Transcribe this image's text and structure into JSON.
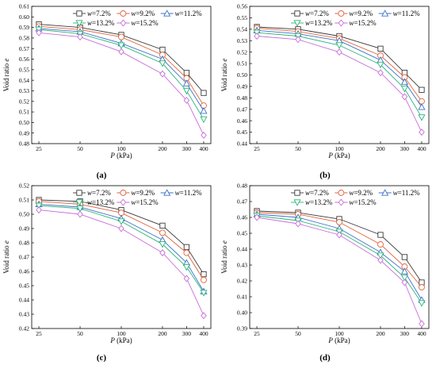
{
  "figure": {
    "series_style": [
      {
        "color": "#3a3a3a",
        "marker": "square"
      },
      {
        "color": "#e0643c",
        "marker": "circle"
      },
      {
        "color": "#3c72c8",
        "marker": "triangle-up"
      },
      {
        "color": "#2cb478",
        "marker": "triangle-down"
      },
      {
        "color": "#c86ed8",
        "marker": "diamond"
      }
    ]
  },
  "chart_data": [
    {
      "type": "line",
      "panel_label": "(a)",
      "xscale": "log",
      "x": [
        25,
        50,
        100,
        200,
        300,
        400
      ],
      "x_ticks": [
        "25",
        "50",
        "100",
        "200",
        "300",
        "400"
      ],
      "ylim": [
        0.48,
        0.61
      ],
      "y_ticks": [
        "0.48",
        "0.49",
        "0.50",
        "0.51",
        "0.52",
        "0.53",
        "0.54",
        "0.55",
        "0.56",
        "0.57",
        "0.58",
        "0.59",
        "0.60",
        "0.61"
      ],
      "xlabel": [
        "P",
        " (kPa)"
      ],
      "ylabel": "Void ratio e",
      "legend_position": "top",
      "series": [
        {
          "name": "w=7.2%",
          "values": [
            0.593,
            0.59,
            0.583,
            0.569,
            0.547,
            0.528
          ]
        },
        {
          "name": "w=9.2%",
          "values": [
            0.591,
            0.588,
            0.581,
            0.564,
            0.542,
            0.516
          ]
        },
        {
          "name": "w=11.2%",
          "values": [
            0.589,
            0.586,
            0.575,
            0.56,
            0.537,
            0.511
          ]
        },
        {
          "name": "w=13.2%",
          "values": [
            0.588,
            0.584,
            0.573,
            0.556,
            0.53,
            0.503
          ]
        },
        {
          "name": "w=15.2%",
          "values": [
            0.585,
            0.581,
            0.567,
            0.546,
            0.521,
            0.488
          ]
        }
      ]
    },
    {
      "type": "line",
      "panel_label": "(b)",
      "xscale": "log",
      "x": [
        25,
        50,
        100,
        200,
        300,
        400
      ],
      "x_ticks": [
        "25",
        "50",
        "100",
        "200",
        "300",
        "400"
      ],
      "ylim": [
        0.44,
        0.56
      ],
      "y_ticks": [
        "0.44",
        "0.45",
        "0.46",
        "0.47",
        "0.48",
        "0.49",
        "0.50",
        "0.51",
        "0.52",
        "0.53",
        "0.54",
        "0.55",
        "0.56"
      ],
      "xlabel": [
        "P",
        " (kPa)"
      ],
      "ylabel": "Void ratio e",
      "legend_position": "top",
      "series": [
        {
          "name": "w=7.2%",
          "values": [
            0.542,
            0.54,
            0.534,
            0.523,
            0.502,
            0.487
          ]
        },
        {
          "name": "w=9.2%",
          "values": [
            0.541,
            0.538,
            0.532,
            0.517,
            0.498,
            0.477
          ]
        },
        {
          "name": "w=11.2%",
          "values": [
            0.539,
            0.536,
            0.53,
            0.513,
            0.494,
            0.472
          ]
        },
        {
          "name": "w=13.2%",
          "values": [
            0.537,
            0.534,
            0.526,
            0.509,
            0.488,
            0.463
          ]
        },
        {
          "name": "w=15.2%",
          "values": [
            0.534,
            0.531,
            0.52,
            0.502,
            0.481,
            0.45
          ]
        }
      ]
    },
    {
      "type": "line",
      "panel_label": "(c)",
      "xscale": "log",
      "x": [
        25,
        50,
        100,
        200,
        300,
        400
      ],
      "x_ticks": [
        "25",
        "50",
        "100",
        "200",
        "300",
        "400"
      ],
      "ylim": [
        0.42,
        0.52
      ],
      "y_ticks": [
        "0.42",
        "0.43",
        "0.44",
        "0.45",
        "0.46",
        "0.47",
        "0.48",
        "0.49",
        "0.50",
        "0.51",
        "0.52"
      ],
      "xlabel": [
        "P",
        " (kPa)"
      ],
      "ylabel": "Void ratio e",
      "legend_position": "top",
      "series": [
        {
          "name": "w=7.2%",
          "values": [
            0.51,
            0.509,
            0.503,
            0.492,
            0.477,
            0.458
          ]
        },
        {
          "name": "w=9.2%",
          "values": [
            0.509,
            0.507,
            0.501,
            0.487,
            0.473,
            0.454
          ]
        },
        {
          "name": "w=11.2%",
          "values": [
            0.507,
            0.505,
            0.497,
            0.482,
            0.466,
            0.446
          ]
        },
        {
          "name": "w=13.2%",
          "values": [
            0.506,
            0.504,
            0.495,
            0.479,
            0.463,
            0.445
          ]
        },
        {
          "name": "w=15.2%",
          "values": [
            0.503,
            0.5,
            0.49,
            0.473,
            0.455,
            0.429
          ]
        }
      ]
    },
    {
      "type": "line",
      "panel_label": "(d)",
      "xscale": "log",
      "x": [
        25,
        50,
        100,
        200,
        300,
        400
      ],
      "x_ticks": [
        "25",
        "50",
        "100",
        "200",
        "300",
        "400"
      ],
      "ylim": [
        0.39,
        0.48
      ],
      "y_ticks": [
        "0.39",
        "0.40",
        "0.41",
        "0.42",
        "0.43",
        "0.44",
        "0.45",
        "0.46",
        "0.47",
        "0.48"
      ],
      "xlabel": [
        "P",
        " (kPa)"
      ],
      "ylabel": "Void ratio e",
      "legend_position": "top",
      "series": [
        {
          "name": "w=7.2%",
          "values": [
            0.464,
            0.463,
            0.459,
            0.449,
            0.435,
            0.419
          ]
        },
        {
          "name": "w=9.2%",
          "values": [
            0.463,
            0.462,
            0.457,
            0.443,
            0.429,
            0.416
          ]
        },
        {
          "name": "w=11.2%",
          "values": [
            0.462,
            0.46,
            0.453,
            0.438,
            0.426,
            0.408
          ]
        },
        {
          "name": "w=13.2%",
          "values": [
            0.461,
            0.458,
            0.451,
            0.436,
            0.422,
            0.406
          ]
        },
        {
          "name": "w=15.2%",
          "values": [
            0.46,
            0.456,
            0.449,
            0.433,
            0.419,
            0.393
          ]
        }
      ]
    }
  ]
}
